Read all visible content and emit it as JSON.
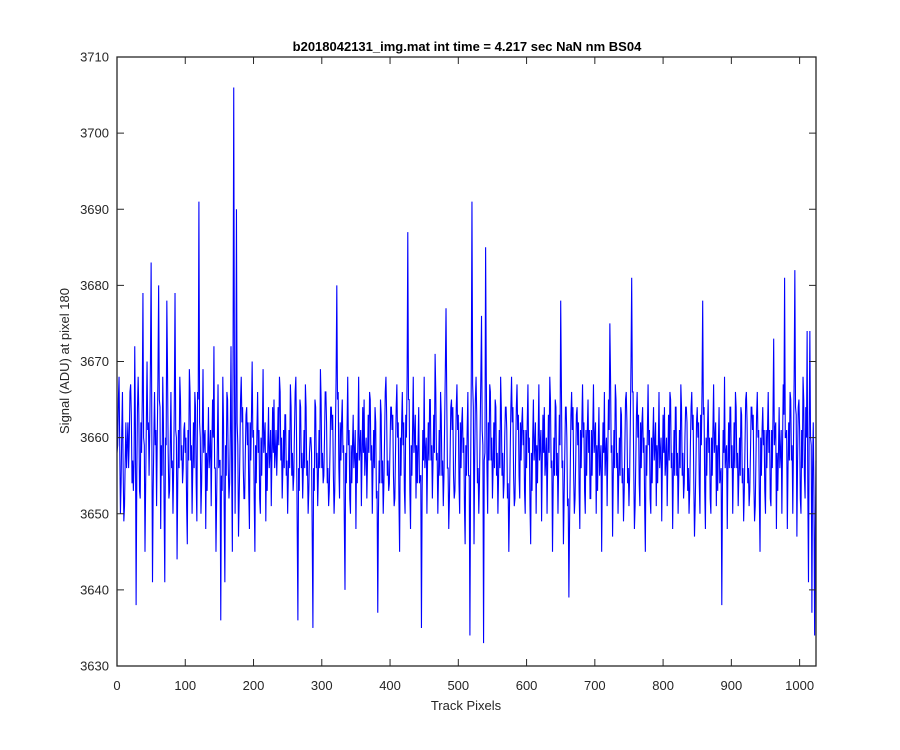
{
  "chart_data": {
    "type": "line",
    "title": "b2018042131_img.mat int time = 4.217 sec  NaN nm BS04",
    "xlabel": "Track Pixels",
    "ylabel": "Signal (ADU) at pixel 180",
    "xlim": [
      0,
      1024
    ],
    "ylim": [
      3630,
      3710
    ],
    "xticks": [
      0,
      100,
      200,
      300,
      400,
      500,
      600,
      700,
      800,
      900,
      1000
    ],
    "yticks": [
      3630,
      3640,
      3650,
      3660,
      3670,
      3680,
      3690,
      3700,
      3710
    ],
    "grid": false,
    "legend": "none",
    "series": [
      {
        "color": "#0000ff",
        "anchors": [
          [
            0,
            3658
          ],
          [
            3,
            3668
          ],
          [
            5,
            3650
          ],
          [
            8,
            3666
          ],
          [
            10,
            3649
          ],
          [
            13,
            3662
          ],
          [
            17,
            3656
          ],
          [
            20,
            3667
          ],
          [
            24,
            3653
          ],
          [
            26,
            3672
          ],
          [
            28,
            3638
          ],
          [
            31,
            3668
          ],
          [
            34,
            3652
          ],
          [
            38,
            3679
          ],
          [
            41,
            3645
          ],
          [
            44,
            3670
          ],
          [
            47,
            3655
          ],
          [
            50,
            3683
          ],
          [
            52,
            3641
          ],
          [
            55,
            3666
          ],
          [
            58,
            3651
          ],
          [
            61,
            3680
          ],
          [
            64,
            3648
          ],
          [
            67,
            3668
          ],
          [
            70,
            3641
          ],
          [
            73,
            3678
          ],
          [
            76,
            3652
          ],
          [
            79,
            3666
          ],
          [
            82,
            3650
          ],
          [
            85,
            3679
          ],
          [
            88,
            3644
          ],
          [
            92,
            3668
          ],
          [
            96,
            3654
          ],
          [
            99,
            3662
          ],
          [
            103,
            3646
          ],
          [
            106,
            3669
          ],
          [
            110,
            3650
          ],
          [
            114,
            3666
          ],
          [
            117,
            3649
          ],
          [
            120,
            3691
          ],
          [
            123,
            3650
          ],
          [
            126,
            3669
          ],
          [
            130,
            3648
          ],
          [
            134,
            3664
          ],
          [
            138,
            3651
          ],
          [
            142,
            3672
          ],
          [
            145,
            3645
          ],
          [
            148,
            3667
          ],
          [
            152,
            3636
          ],
          [
            155,
            3668
          ],
          [
            158,
            3641
          ],
          [
            161,
            3666
          ],
          [
            164,
            3652
          ],
          [
            167,
            3672
          ],
          [
            169,
            3645
          ],
          [
            171,
            3706
          ],
          [
            173,
            3650
          ],
          [
            175,
            3690
          ],
          [
            178,
            3647
          ],
          [
            182,
            3668
          ],
          [
            186,
            3652
          ],
          [
            190,
            3664
          ],
          [
            194,
            3648
          ],
          [
            198,
            3670
          ],
          [
            202,
            3645
          ],
          [
            206,
            3666
          ],
          [
            210,
            3650
          ],
          [
            214,
            3669
          ],
          [
            218,
            3649
          ],
          [
            222,
            3664
          ],
          [
            226,
            3651
          ],
          [
            230,
            3665
          ],
          [
            234,
            3655
          ],
          [
            238,
            3668
          ],
          [
            242,
            3652
          ],
          [
            246,
            3663
          ],
          [
            250,
            3650
          ],
          [
            254,
            3667
          ],
          [
            258,
            3653
          ],
          [
            262,
            3668
          ],
          [
            265,
            3636
          ],
          [
            268,
            3665
          ],
          [
            272,
            3652
          ],
          [
            276,
            3667
          ],
          [
            280,
            3650
          ],
          [
            284,
            3660
          ],
          [
            287,
            3635
          ],
          [
            290,
            3665
          ],
          [
            294,
            3651
          ],
          [
            298,
            3669
          ],
          [
            302,
            3654
          ],
          [
            306,
            3666
          ],
          [
            310,
            3651
          ],
          [
            314,
            3664
          ],
          [
            318,
            3650
          ],
          [
            322,
            3680
          ],
          [
            326,
            3652
          ],
          [
            330,
            3665
          ],
          [
            334,
            3640
          ],
          [
            338,
            3668
          ],
          [
            342,
            3650
          ],
          [
            346,
            3663
          ],
          [
            350,
            3648
          ],
          [
            354,
            3668
          ],
          [
            358,
            3651
          ],
          [
            362,
            3665
          ],
          [
            366,
            3652
          ],
          [
            370,
            3666
          ],
          [
            374,
            3650
          ],
          [
            378,
            3664
          ],
          [
            382,
            3637
          ],
          [
            386,
            3665
          ],
          [
            390,
            3650
          ],
          [
            394,
            3668
          ],
          [
            398,
            3653
          ],
          [
            402,
            3664
          ],
          [
            406,
            3651
          ],
          [
            410,
            3667
          ],
          [
            414,
            3645
          ],
          [
            418,
            3666
          ],
          [
            422,
            3650
          ],
          [
            426,
            3687
          ],
          [
            430,
            3648
          ],
          [
            434,
            3668
          ],
          [
            438,
            3652
          ],
          [
            442,
            3664
          ],
          [
            446,
            3635
          ],
          [
            450,
            3668
          ],
          [
            454,
            3650
          ],
          [
            458,
            3665
          ],
          [
            462,
            3652
          ],
          [
            466,
            3671
          ],
          [
            470,
            3650
          ],
          [
            474,
            3666
          ],
          [
            478,
            3651
          ],
          [
            482,
            3677
          ],
          [
            486,
            3648
          ],
          [
            490,
            3665
          ],
          [
            494,
            3652
          ],
          [
            498,
            3667
          ],
          [
            502,
            3650
          ],
          [
            506,
            3664
          ],
          [
            510,
            3646
          ],
          [
            514,
            3666
          ],
          [
            517,
            3634
          ],
          [
            520,
            3691
          ],
          [
            523,
            3646
          ],
          [
            526,
            3668
          ],
          [
            530,
            3650
          ],
          [
            534,
            3676
          ],
          [
            537,
            3633
          ],
          [
            540,
            3685
          ],
          [
            543,
            3650
          ],
          [
            546,
            3667
          ],
          [
            550,
            3652
          ],
          [
            554,
            3665
          ],
          [
            558,
            3650
          ],
          [
            562,
            3668
          ],
          [
            566,
            3652
          ],
          [
            570,
            3664
          ],
          [
            574,
            3645
          ],
          [
            578,
            3668
          ],
          [
            582,
            3651
          ],
          [
            586,
            3667
          ],
          [
            590,
            3652
          ],
          [
            594,
            3664
          ],
          [
            598,
            3650
          ],
          [
            602,
            3667
          ],
          [
            606,
            3646
          ],
          [
            610,
            3665
          ],
          [
            614,
            3650
          ],
          [
            618,
            3667
          ],
          [
            622,
            3649
          ],
          [
            626,
            3664
          ],
          [
            630,
            3650
          ],
          [
            634,
            3668
          ],
          [
            638,
            3645
          ],
          [
            642,
            3665
          ],
          [
            646,
            3650
          ],
          [
            650,
            3678
          ],
          [
            654,
            3646
          ],
          [
            658,
            3664
          ],
          [
            662,
            3639
          ],
          [
            666,
            3666
          ],
          [
            670,
            3650
          ],
          [
            674,
            3664
          ],
          [
            678,
            3648
          ],
          [
            682,
            3667
          ],
          [
            686,
            3650
          ],
          [
            690,
            3665
          ],
          [
            694,
            3652
          ],
          [
            698,
            3667
          ],
          [
            702,
            3650
          ],
          [
            706,
            3664
          ],
          [
            710,
            3645
          ],
          [
            714,
            3666
          ],
          [
            718,
            3651
          ],
          [
            722,
            3675
          ],
          [
            726,
            3647
          ],
          [
            730,
            3667
          ],
          [
            734,
            3650
          ],
          [
            738,
            3664
          ],
          [
            742,
            3649
          ],
          [
            746,
            3666
          ],
          [
            750,
            3651
          ],
          [
            754,
            3681
          ],
          [
            758,
            3648
          ],
          [
            762,
            3666
          ],
          [
            766,
            3651
          ],
          [
            770,
            3664
          ],
          [
            774,
            3645
          ],
          [
            778,
            3667
          ],
          [
            782,
            3650
          ],
          [
            786,
            3664
          ],
          [
            790,
            3651
          ],
          [
            794,
            3666
          ],
          [
            798,
            3649
          ],
          [
            802,
            3664
          ],
          [
            806,
            3651
          ],
          [
            810,
            3666
          ],
          [
            814,
            3648
          ],
          [
            818,
            3664
          ],
          [
            822,
            3650
          ],
          [
            826,
            3667
          ],
          [
            830,
            3652
          ],
          [
            834,
            3664
          ],
          [
            838,
            3650
          ],
          [
            842,
            3666
          ],
          [
            846,
            3647
          ],
          [
            850,
            3664
          ],
          [
            854,
            3650
          ],
          [
            858,
            3678
          ],
          [
            862,
            3648
          ],
          [
            866,
            3665
          ],
          [
            870,
            3650
          ],
          [
            874,
            3667
          ],
          [
            878,
            3651
          ],
          [
            882,
            3664
          ],
          [
            886,
            3638
          ],
          [
            890,
            3668
          ],
          [
            894,
            3648
          ],
          [
            898,
            3664
          ],
          [
            902,
            3650
          ],
          [
            906,
            3666
          ],
          [
            910,
            3651
          ],
          [
            914,
            3664
          ],
          [
            918,
            3649
          ],
          [
            922,
            3666
          ],
          [
            926,
            3651
          ],
          [
            930,
            3664
          ],
          [
            934,
            3649
          ],
          [
            938,
            3666
          ],
          [
            942,
            3645
          ],
          [
            946,
            3664
          ],
          [
            950,
            3650
          ],
          [
            954,
            3666
          ],
          [
            958,
            3651
          ],
          [
            962,
            3673
          ],
          [
            966,
            3648
          ],
          [
            970,
            3664
          ],
          [
            974,
            3650
          ],
          [
            978,
            3681
          ],
          [
            982,
            3648
          ],
          [
            986,
            3666
          ],
          [
            990,
            3650
          ],
          [
            993,
            3682
          ],
          [
            996,
            3647
          ],
          [
            999,
            3665
          ],
          [
            1002,
            3650
          ],
          [
            1005,
            3668
          ],
          [
            1008,
            3652
          ],
          [
            1011,
            3674
          ],
          [
            1013,
            3641
          ],
          [
            1015,
            3674
          ],
          [
            1018,
            3637
          ],
          [
            1020,
            3662
          ],
          [
            1022,
            3634
          ],
          [
            1024,
            3657
          ]
        ]
      }
    ]
  }
}
